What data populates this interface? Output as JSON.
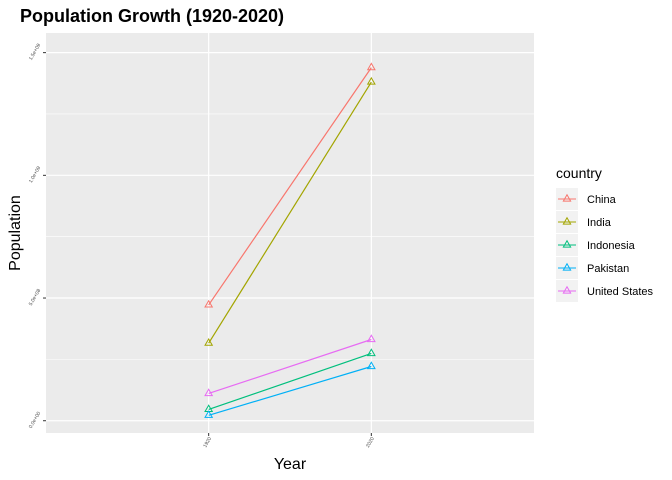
{
  "chart_data": {
    "type": "line",
    "title": "Population Growth (1920-2020)",
    "xlabel": "Year",
    "ylabel": "Population",
    "x": [
      1920,
      2020
    ],
    "x_tick_labels": [
      "1920",
      "2020"
    ],
    "y_ticks": [
      0,
      500000000,
      1000000000,
      1500000000
    ],
    "y_tick_labels": [
      "0.0e+00",
      "5.0e+08",
      "1.0e+09",
      "1.5e+09"
    ],
    "ylim": [
      -50000000,
      1580000000
    ],
    "xlim": [
      1820,
      2120
    ],
    "grid": true,
    "legend_title": "country",
    "legend_position": "right",
    "series": [
      {
        "name": "China",
        "color": "#F8766D",
        "values": [
          472000000,
          1439000000
        ]
      },
      {
        "name": "India",
        "color": "#A3A500",
        "values": [
          316000000,
          1380000000
        ]
      },
      {
        "name": "Indonesia",
        "color": "#00BF7D",
        "values": [
          46000000,
          274000000
        ]
      },
      {
        "name": "Pakistan",
        "color": "#00B0F6",
        "values": [
          22000000,
          221000000
        ]
      },
      {
        "name": "United States",
        "color": "#E76BF3",
        "values": [
          111000000,
          331000000
        ]
      }
    ],
    "marker": "open-triangle"
  }
}
